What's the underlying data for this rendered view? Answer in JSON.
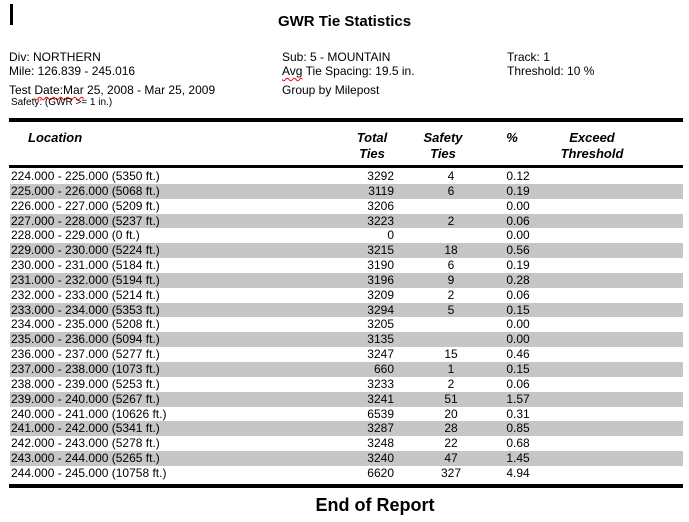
{
  "page": {
    "title": "GWR Tie Statistics",
    "end_text": "End of Report"
  },
  "header_info": {
    "left": {
      "div": "Div: NORTHERN",
      "mile": "Mile: 126.839 - 245.016",
      "test_date_prefix": "Test ",
      "test_date_squiggled": "Date:Mar",
      "test_date_suffix": " 25, 2008 - Mar 25, 2009",
      "safety_note": "Safety: (GWR >= 1 in.)"
    },
    "middle": {
      "sub": "Sub: 5 - MOUNTAIN",
      "avg_squiggled": "Avg",
      "avg_suffix": " Tie Spacing: 19.5 in.",
      "group": "Group by Milepost"
    },
    "right": {
      "track": "Track: 1",
      "threshold": "Threshold: 10 %"
    }
  },
  "table": {
    "columns": {
      "location": "Location",
      "total_line1": "Total",
      "total_line2": "Ties",
      "safety_line1": "Safety",
      "safety_line2": "Ties",
      "percent": "%",
      "exceed_line1": "Exceed",
      "exceed_line2": "Threshold"
    },
    "rows": [
      {
        "location": "224.000 - 225.000 (5350 ft.)",
        "total": "3292",
        "safety": "4",
        "pct": "0.12",
        "exceed": ""
      },
      {
        "location": "225.000 - 226.000 (5068 ft.)",
        "total": "3119",
        "safety": "6",
        "pct": "0.19",
        "exceed": ""
      },
      {
        "location": "226.000 - 227.000 (5209 ft.)",
        "total": "3206",
        "safety": "",
        "pct": "0.00",
        "exceed": ""
      },
      {
        "location": "227.000 - 228.000 (5237 ft.)",
        "total": "3223",
        "safety": "2",
        "pct": "0.06",
        "exceed": ""
      },
      {
        "location": "228.000 - 229.000 (0 ft.)",
        "total": "0",
        "safety": "",
        "pct": "0.00",
        "exceed": ""
      },
      {
        "location": "229.000 - 230.000 (5224 ft.)",
        "total": "3215",
        "safety": "18",
        "pct": "0.56",
        "exceed": ""
      },
      {
        "location": "230.000 - 231.000 (5184 ft.)",
        "total": "3190",
        "safety": "6",
        "pct": "0.19",
        "exceed": ""
      },
      {
        "location": "231.000 - 232.000 (5194 ft.)",
        "total": "3196",
        "safety": "9",
        "pct": "0.28",
        "exceed": ""
      },
      {
        "location": "232.000 - 233.000 (5214 ft.)",
        "total": "3209",
        "safety": "2",
        "pct": "0.06",
        "exceed": ""
      },
      {
        "location": "233.000 - 234.000 (5353 ft.)",
        "total": "3294",
        "safety": "5",
        "pct": "0.15",
        "exceed": ""
      },
      {
        "location": "234.000 - 235.000 (5208 ft.)",
        "total": "3205",
        "safety": "",
        "pct": "0.00",
        "exceed": ""
      },
      {
        "location": "235.000 - 236.000 (5094 ft.)",
        "total": "3135",
        "safety": "",
        "pct": "0.00",
        "exceed": ""
      },
      {
        "location": "236.000 - 237.000 (5277 ft.)",
        "total": "3247",
        "safety": "15",
        "pct": "0.46",
        "exceed": ""
      },
      {
        "location": "237.000 - 238.000 (1073 ft.)",
        "total": "660",
        "safety": "1",
        "pct": "0.15",
        "exceed": ""
      },
      {
        "location": "238.000 - 239.000 (5253 ft.)",
        "total": "3233",
        "safety": "2",
        "pct": "0.06",
        "exceed": ""
      },
      {
        "location": "239.000 - 240.000 (5267 ft.)",
        "total": "3241",
        "safety": "51",
        "pct": "1.57",
        "exceed": ""
      },
      {
        "location": "240.000 - 241.000 (10626 ft.)",
        "total": "6539",
        "safety": "20",
        "pct": "0.31",
        "exceed": ""
      },
      {
        "location": "241.000 - 242.000 (5341 ft.)",
        "total": "3287",
        "safety": "28",
        "pct": "0.85",
        "exceed": ""
      },
      {
        "location": "242.000 - 243.000 (5278 ft.)",
        "total": "3248",
        "safety": "22",
        "pct": "0.68",
        "exceed": ""
      },
      {
        "location": "243.000 - 244.000 (5265 ft.)",
        "total": "3240",
        "safety": "47",
        "pct": "1.45",
        "exceed": ""
      },
      {
        "location": "244.000 - 245.000 (10758 ft.)",
        "total": "6620",
        "safety": "327",
        "pct": "4.94",
        "exceed": ""
      }
    ]
  },
  "colors": {
    "stripe": "#c6c6c6",
    "squiggle": "#ff0000",
    "rule": "#000000"
  }
}
